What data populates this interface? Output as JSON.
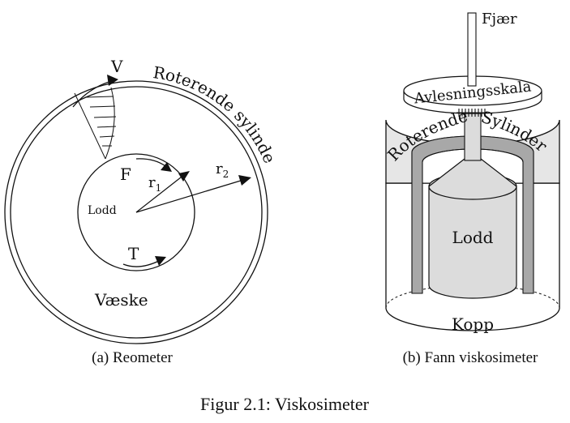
{
  "figure": {
    "caption": "Figur 2.1: Viskosimeter"
  },
  "rheometer": {
    "caption": "(a) Reometer",
    "outer_label": "Roterende sylinder",
    "velocity_label": "V",
    "force_label": "F",
    "torque_label": "T",
    "bob_label": "Lodd",
    "fluid_label": "Væske",
    "inner_radius": {
      "letter": "r",
      "sub": "1"
    },
    "outer_radius": {
      "letter": "r",
      "sub": "2"
    }
  },
  "fann": {
    "caption": "(b) Fann viskosimeter",
    "spring_label": "Fjær",
    "scale_label": "Avlesningsskala",
    "rotor_word_1": "Roterende",
    "rotor_word_2": "Sylinder",
    "bob_label": "Lodd",
    "cup_label": "Kopp"
  },
  "colors": {
    "line": "#111111",
    "rotor_fill": "#e6e6e6",
    "sleeve_fill": "#a8a8a8",
    "bob_fill": "#dcdcdc",
    "background": "#ffffff"
  }
}
